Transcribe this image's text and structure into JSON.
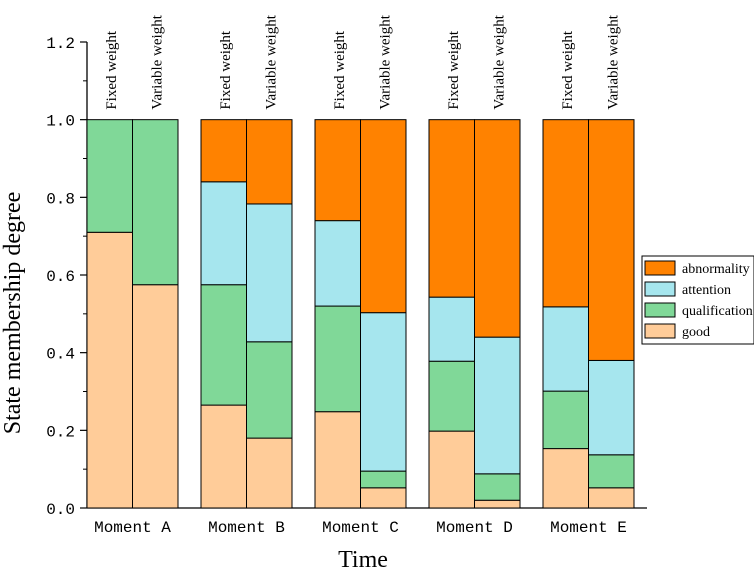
{
  "chart_data": {
    "type": "stacked-bar",
    "title": "",
    "xlabel": "Time",
    "ylabel": "State membership degree",
    "ylim": [
      0,
      1.2
    ],
    "yticks": [
      "0.0",
      "0.2",
      "0.4",
      "0.6",
      "0.8",
      "1.0",
      "1.2"
    ],
    "legend_position": "right",
    "groups": [
      "Moment A",
      "Moment B",
      "Moment C",
      "Moment D",
      "Moment E"
    ],
    "bar_labels": [
      "Fixed weight",
      "Variable weight"
    ],
    "stack_order": [
      "good",
      "qualification",
      "attention",
      "abnormality"
    ],
    "legend_order": [
      "abnormality",
      "attention",
      "qualification",
      "good"
    ],
    "colors": {
      "good": "#FFCC99",
      "qualification": "#80D898",
      "attention": "#A6E6EE",
      "abnormality": "#FF8200"
    },
    "series": [
      {
        "name": "good",
        "values": [
          0.71,
          0.575,
          0.265,
          0.18,
          0.248,
          0.052,
          0.198,
          0.02,
          0.153,
          0.052
        ]
      },
      {
        "name": "qualification",
        "values": [
          0.29,
          0.425,
          0.31,
          0.248,
          0.272,
          0.043,
          0.18,
          0.068,
          0.148,
          0.085
        ]
      },
      {
        "name": "attention",
        "values": [
          0.0,
          0.0,
          0.265,
          0.355,
          0.22,
          0.408,
          0.165,
          0.352,
          0.217,
          0.243
        ]
      },
      {
        "name": "abnormality",
        "values": [
          0.0,
          0.0,
          0.16,
          0.217,
          0.26,
          0.497,
          0.457,
          0.56,
          0.482,
          0.62
        ]
      }
    ]
  }
}
